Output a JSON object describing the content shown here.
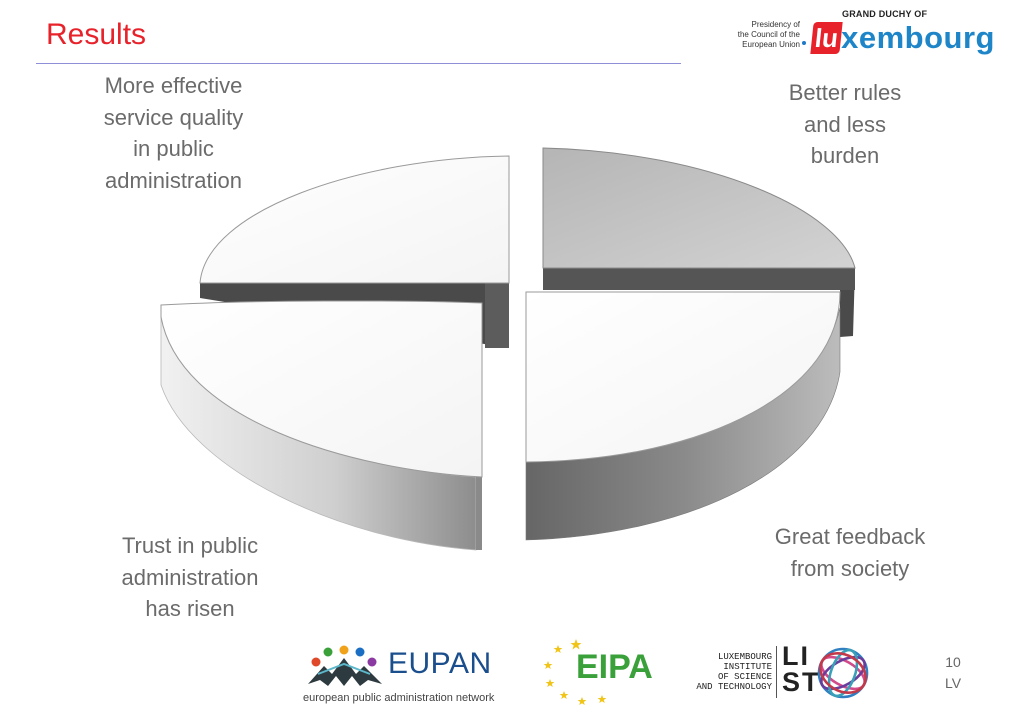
{
  "slide": {
    "title": "Results",
    "page_number": "10",
    "page_code": "LV"
  },
  "logos": {
    "luxembourg": {
      "top_label": "GRAND DUCHY OF",
      "presidency_lines": [
        "Presidency of",
        "the Council of the",
        "European Union"
      ],
      "wordmark_prefix": "lu",
      "wordmark_rest": "xembourg",
      "colors": {
        "red": "#e8222a",
        "blue": "#1e86c8"
      }
    },
    "eupan": {
      "name": "EUPAN",
      "tagline": "european public administration network",
      "icon": "people-circle-icon"
    },
    "eipa": {
      "name": "EIPA",
      "icon": "eu-stars-icon",
      "colors": {
        "green": "#3aa13a",
        "star": "#f0c419"
      }
    },
    "list": {
      "institute_lines": [
        "LUXEMBOURG",
        "INSTITUTE",
        "OF SCIENCE",
        "AND TECHNOLOGY"
      ],
      "mark_lines": [
        "LI",
        "ST"
      ],
      "icon": "globe-rings-icon"
    }
  },
  "pie_segments": [
    {
      "id": "top-left",
      "lines": [
        "More effective",
        "service quality",
        "in public",
        "administration"
      ],
      "shade": "white"
    },
    {
      "id": "top-right",
      "lines": [
        "Better rules",
        "and less",
        "burden"
      ],
      "shade": "grey"
    },
    {
      "id": "bottom-left",
      "lines": [
        "Trust in public",
        "administration",
        "has risen"
      ],
      "shade": "white"
    },
    {
      "id": "bottom-right",
      "lines": [
        "Great feedback",
        "from society"
      ],
      "shade": "white"
    }
  ],
  "colors": {
    "title": "#e8222a",
    "rule": "#8f8fd8",
    "label": "#6b6b6b"
  }
}
